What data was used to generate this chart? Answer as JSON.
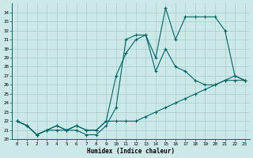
{
  "xlabel": "Humidex (Indice chaleur)",
  "bg_color": "#cce8e8",
  "grid_color": "#aacccc",
  "line_color": "#006666",
  "xlim": [
    -0.5,
    23.5
  ],
  "ylim": [
    20,
    35
  ],
  "x_ticks": [
    0,
    1,
    2,
    3,
    4,
    5,
    6,
    7,
    8,
    9,
    10,
    11,
    12,
    13,
    14,
    15,
    16,
    17,
    18,
    19,
    20,
    21,
    22,
    23
  ],
  "y_ticks": [
    20,
    21,
    22,
    23,
    24,
    25,
    26,
    27,
    28,
    29,
    30,
    31,
    32,
    33,
    34
  ],
  "line1_x": [
    0,
    1,
    2,
    3,
    4,
    5,
    6,
    7,
    8,
    9,
    10,
    11,
    12,
    13,
    14,
    15,
    16,
    17,
    18,
    19,
    20,
    21,
    22,
    23
  ],
  "line1_y": [
    22.0,
    21.5,
    20.5,
    21.0,
    21.0,
    21.0,
    21.0,
    20.5,
    20.5,
    21.5,
    23.5,
    31.0,
    31.5,
    31.5,
    29.0,
    34.5,
    31.0,
    33.5,
    33.5,
    33.5,
    33.5,
    32.0,
    27.0,
    26.5
  ],
  "line2_x": [
    0,
    1,
    2,
    3,
    4,
    5,
    6,
    7,
    8,
    9,
    10,
    11,
    12,
    13,
    14,
    15,
    16,
    17,
    18,
    19,
    20,
    21,
    22,
    23
  ],
  "line2_y": [
    22.0,
    21.5,
    20.5,
    21.0,
    21.5,
    21.0,
    21.5,
    21.0,
    21.0,
    22.0,
    27.0,
    29.5,
    31.0,
    31.5,
    27.5,
    30.0,
    28.0,
    27.5,
    26.5,
    26.0,
    26.0,
    26.5,
    26.5,
    26.5
  ],
  "line3_x": [
    0,
    1,
    2,
    3,
    4,
    5,
    6,
    7,
    8,
    9,
    10,
    11,
    12,
    13,
    14,
    15,
    16,
    17,
    18,
    19,
    20,
    21,
    22,
    23
  ],
  "line3_y": [
    22.0,
    21.5,
    20.5,
    21.0,
    21.5,
    21.0,
    21.5,
    21.0,
    21.0,
    22.0,
    22.0,
    22.0,
    22.0,
    22.5,
    23.0,
    23.5,
    24.0,
    24.5,
    25.0,
    25.5,
    26.0,
    26.5,
    27.0,
    26.5
  ]
}
